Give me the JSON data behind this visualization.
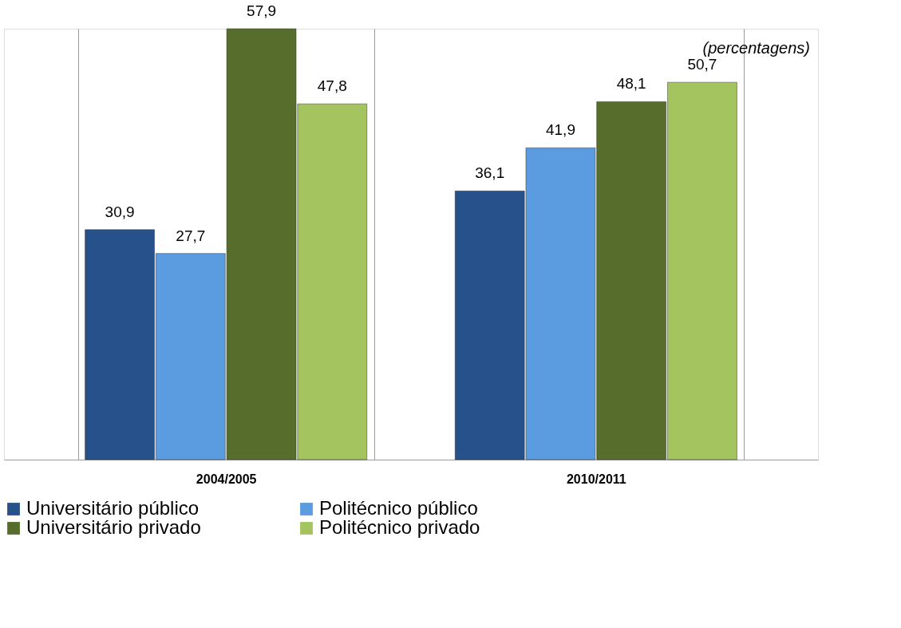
{
  "chart_data": {
    "type": "bar",
    "categories": [
      "2004/2005",
      "2010/2011"
    ],
    "series": [
      {
        "name": "Universitário público",
        "color": "#27518a",
        "values": [
          30.9,
          36.1
        ],
        "value_labels": [
          "30,9",
          "36,1"
        ]
      },
      {
        "name": "Politécnico público",
        "color": "#5b9be0",
        "values": [
          27.7,
          41.9
        ],
        "value_labels": [
          "27,7",
          "41,9"
        ]
      },
      {
        "name": "Universitário privado",
        "color": "#566d2c",
        "values": [
          57.9,
          48.1
        ],
        "value_labels": [
          "57,9",
          "48,1"
        ]
      },
      {
        "name": "Politécnico privado",
        "color": "#a4c45f",
        "values": [
          47.8,
          50.7
        ],
        "value_labels": [
          "47,8",
          "50,7"
        ]
      }
    ],
    "annotations": [
      "(percentagens)"
    ],
    "legend": "bottom",
    "grid": "x"
  }
}
